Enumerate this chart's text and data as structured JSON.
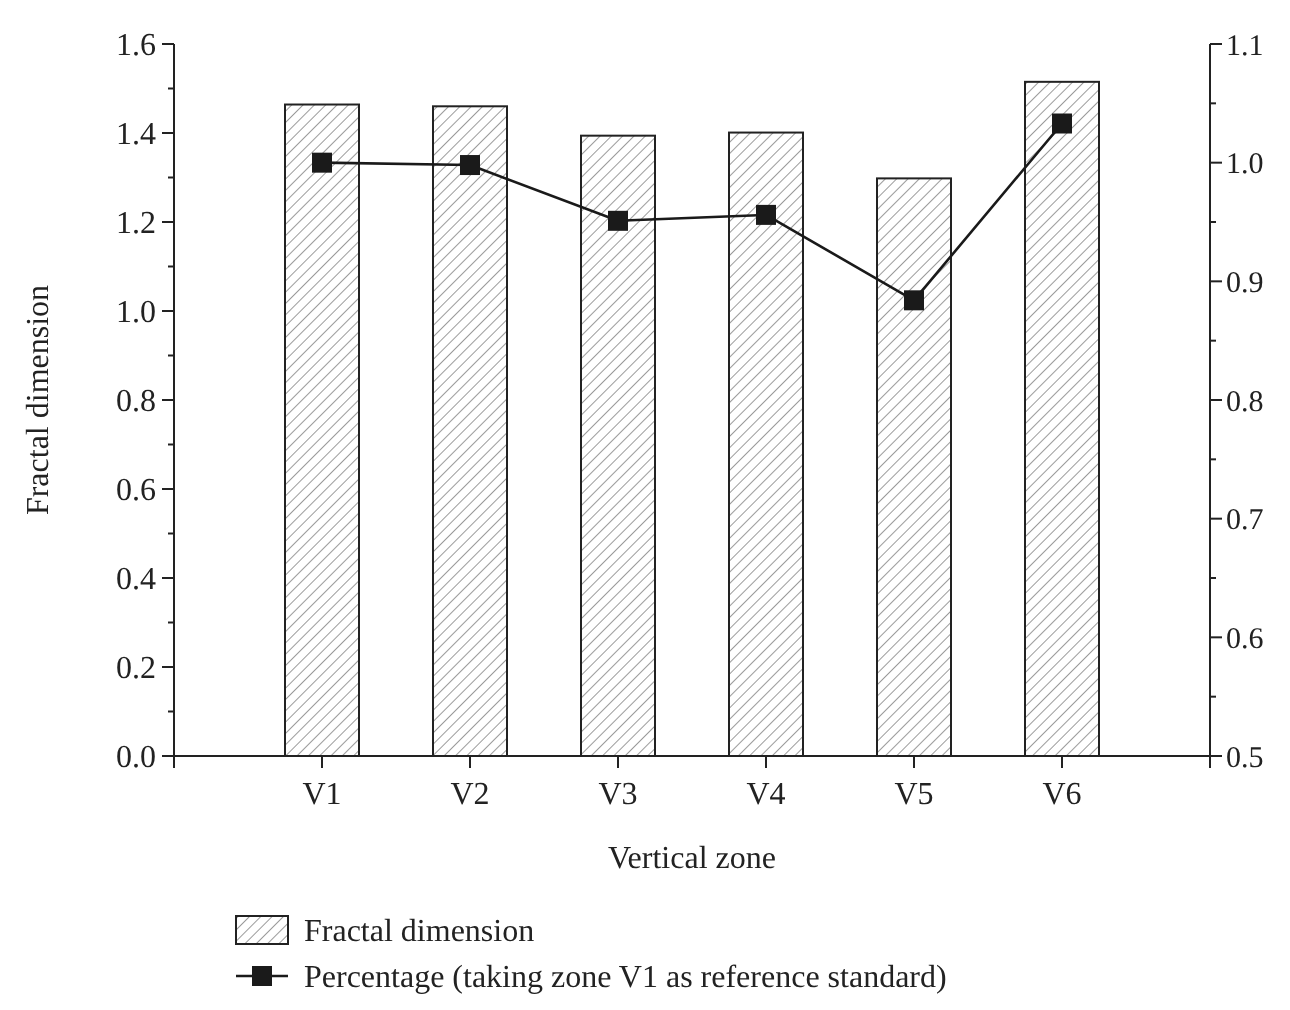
{
  "chart_data": {
    "type": "bar",
    "xlabel": "Vertical zone",
    "ylabel": "Fractal dimension",
    "categories": [
      "V1",
      "V2",
      "V3",
      "V4",
      "V5",
      "V6"
    ],
    "series": [
      {
        "name": "Fractal dimension",
        "color": "#222222",
        "values": [
          1.464,
          1.46,
          1.394,
          1.401,
          1.298,
          1.515
        ]
      },
      {
        "name": "Percentage (taking zone V1 as reference standard)",
        "type": "line",
        "axis": "y2",
        "color": "#1a1a1a",
        "values": [
          1.0,
          0.998,
          0.951,
          0.956,
          0.884,
          1.033
        ]
      }
    ],
    "ylim": [
      0,
      1.6
    ],
    "yticks": [
      {
        "value": 0,
        "label": "0.0"
      },
      {
        "value": 0.1,
        "label": null
      },
      {
        "value": 0.2,
        "label": "0.2"
      },
      {
        "value": 0.3,
        "label": null
      },
      {
        "value": 0.4,
        "label": "0.4"
      },
      {
        "value": 0.5,
        "label": null
      },
      {
        "value": 0.6,
        "label": "0.6"
      },
      {
        "value": 0.7,
        "label": null
      },
      {
        "value": 0.8,
        "label": "0.8"
      },
      {
        "value": 0.9,
        "label": null
      },
      {
        "value": 1.0,
        "label": "1.0"
      },
      {
        "value": 1.1,
        "label": null
      },
      {
        "value": 1.2,
        "label": "1.2"
      },
      {
        "value": 1.3,
        "label": null
      },
      {
        "value": 1.4,
        "label": "1.4"
      },
      {
        "value": 1.5,
        "label": null
      },
      {
        "value": 1.6,
        "label": "1.6"
      }
    ],
    "y2lim": [
      0.5,
      1.1
    ],
    "y2ticks": [
      {
        "value": 0.5,
        "label": "0.5"
      },
      {
        "value": 0.55,
        "label": null
      },
      {
        "value": 0.6,
        "label": "0.6"
      },
      {
        "value": 0.65,
        "label": null
      },
      {
        "value": 0.7,
        "label": "0.7"
      },
      {
        "value": 0.75,
        "label": null
      },
      {
        "value": 0.8,
        "label": "0.8"
      },
      {
        "value": 0.85,
        "label": null
      },
      {
        "value": 0.9,
        "label": "0.9"
      },
      {
        "value": 0.95,
        "label": null
      },
      {
        "value": 1.0,
        "label": "1.0"
      },
      {
        "value": 1.05,
        "label": null
      },
      {
        "value": 1.1,
        "label": "1.1"
      }
    ],
    "marker": "square",
    "line_style": "solid",
    "legend": "bottom",
    "grid": false
  }
}
